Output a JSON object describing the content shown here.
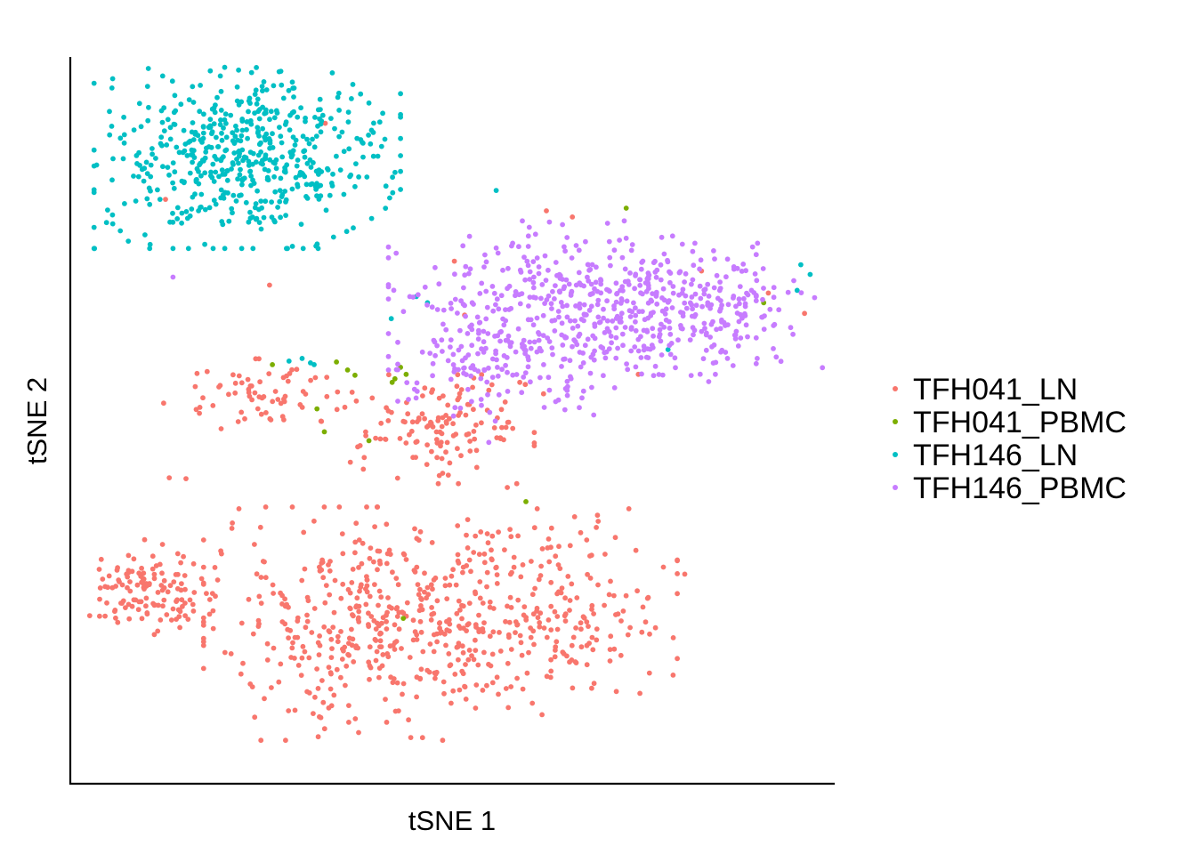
{
  "chart_data": {
    "type": "scatter",
    "xlabel": "tSNE 1",
    "ylabel": "tSNE 2",
    "xlim": [
      -40,
      40
    ],
    "ylim": [
      -40,
      40
    ],
    "grid": false,
    "legend_position": "right",
    "series": [
      {
        "name": "TFH041_LN",
        "color": "#F8766D",
        "clusters": [
          {
            "cx": -33.0,
            "cy": -19.0,
            "sx": 4.0,
            "sy": 2.5,
            "n": 140
          },
          {
            "cx": -8.0,
            "cy": -23.0,
            "sx": 8.5,
            "sy": 6.0,
            "n": 420
          },
          {
            "cx": 10.0,
            "cy": -21.0,
            "sx": 6.5,
            "sy": 5.0,
            "n": 230
          },
          {
            "cx": -20.0,
            "cy": 3.0,
            "sx": 5.0,
            "sy": 1.8,
            "n": 70
          },
          {
            "cx": -1.0,
            "cy": -1.0,
            "sx": 4.5,
            "sy": 2.8,
            "n": 130
          }
        ],
        "points": [
          [
            -30.8,
            25.0
          ],
          [
            -19.6,
            15.3
          ],
          [
            -13.6,
            33.6
          ],
          [
            -30.4,
            -6.5
          ],
          [
            -28.6,
            -6.6
          ],
          [
            -22.9,
            -10.0
          ],
          [
            20.1,
            5.2
          ],
          [
            26.9,
            16.9
          ],
          [
            34.1,
            14.4
          ],
          [
            38.0,
            12.1
          ],
          [
            6.0,
            -7.6
          ],
          [
            9.9,
            3.0
          ],
          [
            10.2,
            23.7
          ],
          [
            13.0,
            23.0
          ],
          [
            17.1,
            -18.2
          ],
          [
            22.8,
            -16.6
          ],
          [
            25.1,
            -17.4
          ],
          [
            0.3,
            18.0
          ],
          [
            1.4,
            11.9
          ]
        ]
      },
      {
        "name": "TFH041_PBMC",
        "color": "#7CAE00",
        "points": [
          [
            -19.3,
            6.3
          ],
          [
            -14.5,
            1.3
          ],
          [
            -13.7,
            -1.3
          ],
          [
            -12.4,
            6.6
          ],
          [
            -10.4,
            5.1
          ],
          [
            -11.2,
            5.7
          ],
          [
            -8.9,
            -2.3
          ],
          [
            -6.1,
            4.7
          ],
          [
            -5.5,
            6.0
          ],
          [
            -6.4,
            4.3
          ],
          [
            -4.9,
            5.2
          ],
          [
            -5.2,
            -22.4
          ],
          [
            8.0,
            -9.2
          ],
          [
            18.8,
            24.0
          ],
          [
            33.6,
            13.3
          ]
        ],
        "clusters": []
      },
      {
        "name": "TFH146_LN",
        "color": "#00BFC4",
        "clusters": [
          {
            "cx": -22.0,
            "cy": 30.0,
            "sx": 7.5,
            "sy": 4.8,
            "n": 560
          }
        ],
        "points": [
          [
            -16.1,
            7.0
          ],
          [
            -15.2,
            6.5
          ],
          [
            -14.8,
            6.3
          ],
          [
            -17.5,
            6.7
          ],
          [
            -6.5,
            11.5
          ],
          [
            -3.8,
            14.0
          ],
          [
            -2.6,
            13.3
          ],
          [
            4.8,
            26.0
          ],
          [
            38.6,
            16.5
          ],
          [
            37.6,
            17.6
          ],
          [
            37.2,
            14.7
          ],
          [
            23.3,
            8.0
          ]
        ]
      },
      {
        "name": "TFH146_PBMC",
        "color": "#C77CFF",
        "clusters": [
          {
            "cx": 13.0,
            "cy": 12.0,
            "sx": 9.0,
            "sy": 4.8,
            "n": 470
          },
          {
            "cx": 27.0,
            "cy": 13.0,
            "sx": 6.0,
            "sy": 3.2,
            "n": 170
          },
          {
            "cx": 3.0,
            "cy": 6.0,
            "sx": 4.0,
            "sy": 3.0,
            "n": 80
          }
        ],
        "points": [
          [
            -30.0,
            16.2
          ],
          [
            -4.5,
            14.0
          ],
          [
            36.5,
            10.5
          ],
          [
            32.9,
            7.0
          ],
          [
            28.4,
            5.2
          ],
          [
            29.7,
            7.0
          ],
          [
            12.2,
            1.2
          ],
          [
            15.3,
            0.6
          ],
          [
            4.0,
            -2.5
          ]
        ]
      }
    ],
    "legend": [
      "TFH041_LN",
      "TFH041_PBMC",
      "TFH146_LN",
      "TFH146_PBMC"
    ]
  }
}
